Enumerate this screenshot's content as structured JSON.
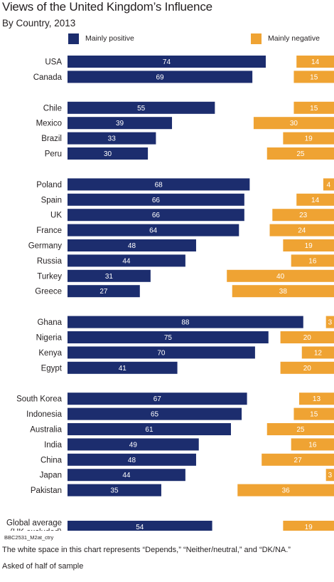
{
  "title": "Views of the United Kingdom’s Influence",
  "subtitle": "By Country, 2013",
  "colors": {
    "positive": "#1c2d6e",
    "negative": "#efa333",
    "label_text": "#231f20",
    "bar_text": "#ffffff"
  },
  "legend": {
    "positive": "Mainly positive",
    "negative": "Mainly negative"
  },
  "chart_data": {
    "type": "bar",
    "orientation": "horizontal",
    "stacking": "diverging (positive from left, negative from right)",
    "xlim": [
      0,
      100
    ],
    "series": [
      {
        "name": "Mainly positive",
        "values": [
          74,
          69,
          55,
          39,
          33,
          30,
          68,
          66,
          66,
          64,
          48,
          44,
          31,
          27,
          88,
          75,
          70,
          41,
          67,
          65,
          61,
          49,
          48,
          44,
          35,
          54
        ]
      },
      {
        "name": "Mainly negative",
        "values": [
          14,
          15,
          15,
          30,
          19,
          25,
          4,
          14,
          23,
          24,
          19,
          16,
          40,
          38,
          3,
          20,
          12,
          20,
          13,
          15,
          25,
          16,
          27,
          3,
          36,
          19
        ]
      }
    ],
    "groups": [
      {
        "rows": [
          {
            "country": "USA",
            "positive": 74,
            "negative": 14
          },
          {
            "country": "Canada",
            "positive": 69,
            "negative": 15
          }
        ]
      },
      {
        "rows": [
          {
            "country": "Chile",
            "positive": 55,
            "negative": 15
          },
          {
            "country": "Mexico",
            "positive": 39,
            "negative": 30
          },
          {
            "country": "Brazil",
            "positive": 33,
            "negative": 19
          },
          {
            "country": "Peru",
            "positive": 30,
            "negative": 25
          }
        ]
      },
      {
        "rows": [
          {
            "country": "Poland",
            "positive": 68,
            "negative": 4
          },
          {
            "country": "Spain",
            "positive": 66,
            "negative": 14
          },
          {
            "country": "UK",
            "positive": 66,
            "negative": 23
          },
          {
            "country": "France",
            "positive": 64,
            "negative": 24
          },
          {
            "country": "Germany",
            "positive": 48,
            "negative": 19
          },
          {
            "country": "Russia",
            "positive": 44,
            "negative": 16
          },
          {
            "country": "Turkey",
            "positive": 31,
            "negative": 40
          },
          {
            "country": "Greece",
            "positive": 27,
            "negative": 38
          }
        ]
      },
      {
        "rows": [
          {
            "country": "Ghana",
            "positive": 88,
            "negative": 3
          },
          {
            "country": "Nigeria",
            "positive": 75,
            "negative": 20
          },
          {
            "country": "Kenya",
            "positive": 70,
            "negative": 12
          },
          {
            "country": "Egypt",
            "positive": 41,
            "negative": 20
          }
        ]
      },
      {
        "rows": [
          {
            "country": "South Korea",
            "positive": 67,
            "negative": 13
          },
          {
            "country": "Indonesia",
            "positive": 65,
            "negative": 15
          },
          {
            "country": "Australia",
            "positive": 61,
            "negative": 25
          },
          {
            "country": "India",
            "positive": 49,
            "negative": 16
          },
          {
            "country": "China",
            "positive": 48,
            "negative": 27
          },
          {
            "country": "Japan",
            "positive": 44,
            "negative": 3
          },
          {
            "country": "Pakistan",
            "positive": 35,
            "negative": 36
          }
        ]
      },
      {
        "rows": [
          {
            "country": [
              "Global average",
              "(UK excluded)"
            ],
            "positive": 54,
            "negative": 19
          }
        ]
      }
    ]
  },
  "source_code": "BBC2531_M2at_ctry",
  "notes": [
    "The white space in this chart represents “Depends,” “Neither/neutral,” and “DK/NA.”",
    "Asked of half of sample"
  ]
}
